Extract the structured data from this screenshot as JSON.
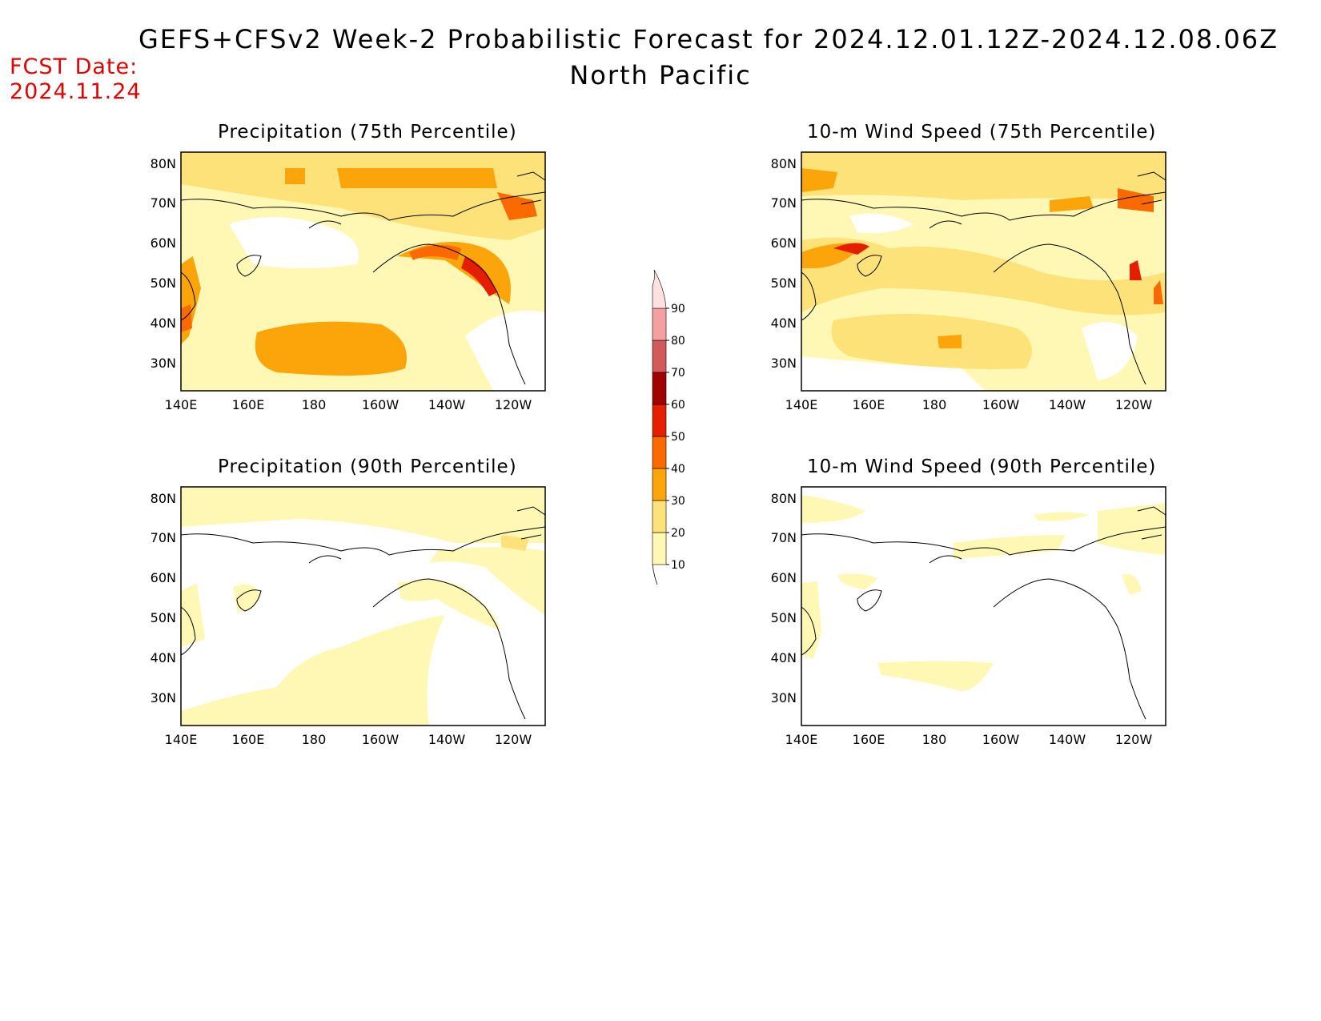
{
  "header": {
    "title": "GEFS+CFSv2 Week-2 Probabilistic Forecast for 2024.12.01.12Z-2024.12.08.06Z",
    "subtitle": "North Pacific",
    "fcst_label": "FCST Date:",
    "fcst_date": "2024.11.24"
  },
  "panels": [
    {
      "title": "Precipitation (75th Percentile)"
    },
    {
      "title": "10-m Wind Speed (75th Percentile)"
    },
    {
      "title": "Precipitation (90th Percentile)"
    },
    {
      "title": "10-m Wind Speed (90th Percentile)"
    }
  ],
  "axes": {
    "lat_labels": [
      "80N",
      "70N",
      "60N",
      "50N",
      "40N",
      "30N"
    ],
    "lon_labels": [
      "140E",
      "160E",
      "180",
      "160W",
      "140W",
      "120W"
    ]
  },
  "colorbar": {
    "levels": [
      "10",
      "20",
      "30",
      "40",
      "50",
      "60",
      "70",
      "80",
      "90"
    ],
    "colors": [
      "#fff8b4",
      "#fde27a",
      "#fca50a",
      "#fb6a00",
      "#e61e00",
      "#a10400",
      "#d25a5a",
      "#f5a0a0",
      "#fde0e0"
    ]
  }
}
